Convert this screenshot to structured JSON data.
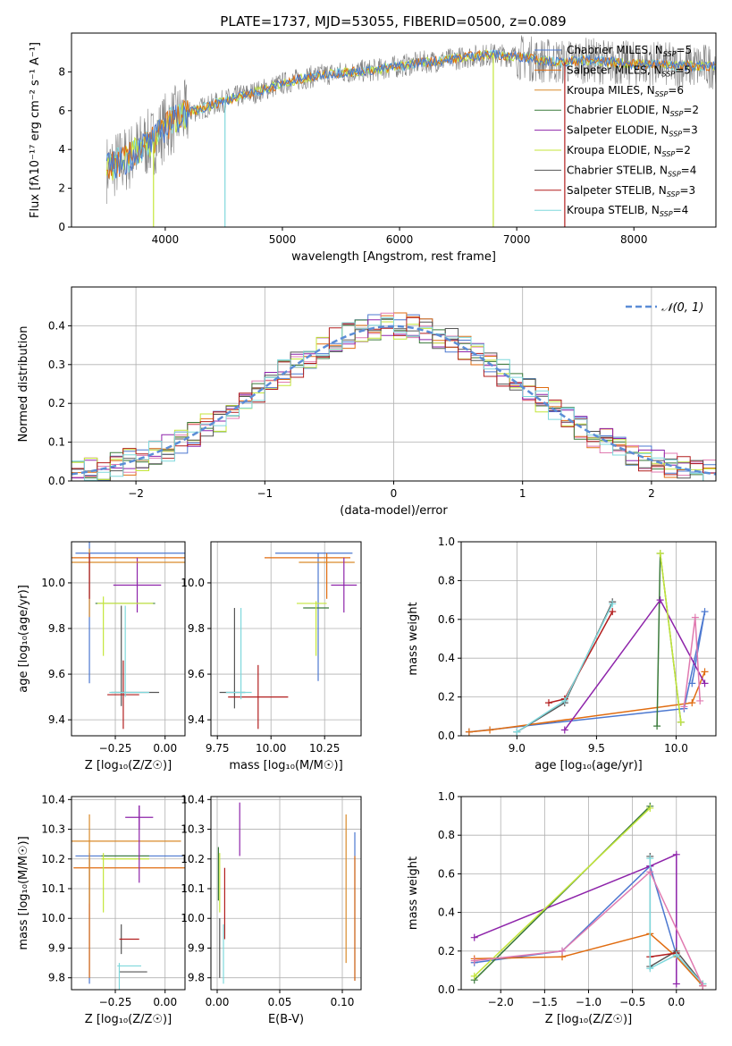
{
  "figure_title": "PLATE=1737, MJD=53055, FIBERID=0500, z=0.089",
  "model_colors": [
    "#4c78d0",
    "#e06c10",
    "#d98a2a",
    "#3a7a3a",
    "#8e24aa",
    "#c4e63a",
    "#555555",
    "#b21e1e",
    "#7fd8dc"
  ],
  "chart_data": [
    {
      "id": "spectrum",
      "type": "line",
      "xlabel": "wavelength [Angstrom, rest frame]",
      "ylabel": "Flux [f$_\\lambda$10$^{-17}$ erg cm$^{-2}$ s$^{-1}$ A$^{-1}$]",
      "ylabel_display": "Flux [fλ10⁻¹⁷ erg cm⁻² s⁻¹ A⁻¹]",
      "xlim": [
        3200,
        8700
      ],
      "ylim": [
        0,
        10
      ],
      "xticks": [
        4000,
        5000,
        6000,
        7000,
        8000
      ],
      "yticks": [
        0,
        2,
        4,
        6,
        8
      ],
      "legend_position": "top-right",
      "data_color": "#808080",
      "continuum": [
        [
          3500,
          3.0
        ],
        [
          3700,
          3.6
        ],
        [
          3800,
          4.2
        ],
        [
          3900,
          4.4
        ],
        [
          4000,
          5.2
        ],
        [
          4100,
          5.6
        ],
        [
          4200,
          5.9
        ],
        [
          4400,
          6.3
        ],
        [
          4600,
          6.7
        ],
        [
          4800,
          7.0
        ],
        [
          5000,
          7.4
        ],
        [
          5200,
          7.7
        ],
        [
          5400,
          7.9
        ],
        [
          5600,
          8.0
        ],
        [
          5800,
          8.1
        ],
        [
          6000,
          8.3
        ],
        [
          6200,
          8.5
        ],
        [
          6400,
          8.6
        ],
        [
          6600,
          8.8
        ],
        [
          6800,
          8.9
        ],
        [
          7000,
          8.8
        ],
        [
          7200,
          8.6
        ],
        [
          7400,
          8.5
        ],
        [
          7600,
          8.6
        ],
        [
          7800,
          8.5
        ],
        [
          8000,
          8.4
        ],
        [
          8200,
          8.4
        ],
        [
          8400,
          8.3
        ],
        [
          8700,
          8.3
        ]
      ],
      "model_dips": [
        {
          "model": "Kroupa STELIB",
          "x": 4510,
          "y": 0
        },
        {
          "model": "Kroupa ELODIE",
          "x": 6800,
          "y": 0
        },
        {
          "model": "Salpeter STELIB",
          "x": 7410,
          "y": 0
        },
        {
          "model": "Kroupa ELODIE",
          "x": 3900,
          "y": 0
        }
      ],
      "legend": [
        {
          "label": "Chabrier MILES, N",
          "sub": "SSP",
          "suffix": "=5"
        },
        {
          "label": "Salpeter MILES, N",
          "sub": "SSP",
          "suffix": "=5"
        },
        {
          "label": "Kroupa MILES, N",
          "sub": "SSP",
          "suffix": "=6"
        },
        {
          "label": "Chabrier ELODIE, N",
          "sub": "SSP",
          "suffix": "=2"
        },
        {
          "label": "Salpeter ELODIE, N",
          "sub": "SSP",
          "suffix": "=3"
        },
        {
          "label": "Kroupa ELODIE, N",
          "sub": "SSP",
          "suffix": "=2"
        },
        {
          "label": "Chabrier STELIB, N",
          "sub": "SSP",
          "suffix": "=4"
        },
        {
          "label": "Salpeter STELIB, N",
          "sub": "SSP",
          "suffix": "=3"
        },
        {
          "label": "Kroupa STELIB, N",
          "sub": "SSP",
          "suffix": "=4"
        }
      ]
    },
    {
      "id": "residuals",
      "type": "step",
      "xlabel": "(data-model)/error",
      "ylabel": "Normed distribution",
      "xlim": [
        -2.5,
        2.5
      ],
      "ylim": [
        0,
        0.5
      ],
      "xticks": [
        -2,
        -1,
        0,
        1,
        2
      ],
      "xtick_labels": [
        "−2",
        "−1",
        "0",
        "1",
        "2"
      ],
      "yticks": [
        0.0,
        0.1,
        0.2,
        0.3,
        0.4
      ],
      "ytick_labels": [
        "0.0",
        "0.1",
        "0.2",
        "0.3",
        "0.4"
      ],
      "grid": true,
      "legend_position": "top-right",
      "legend": [
        {
          "label": "𝒩(0, 1)",
          "style": "dashed",
          "color": "#5b8dd6"
        }
      ],
      "bin_width": 0.1,
      "reference_curve": "normal(0,1)"
    },
    {
      "id": "age_vs_Z",
      "type": "errorbar",
      "xlabel": "Z [log₁₀(Z/Z☉)]",
      "ylabel": "age  [log₁₀(age/yr)]",
      "xlim": [
        -0.47,
        0.1
      ],
      "ylim": [
        9.33,
        10.18
      ],
      "xticks": [
        -0.25,
        0.0
      ],
      "xtick_labels": [
        "−0.25",
        "0.00"
      ],
      "yticks": [
        9.4,
        9.6,
        9.8,
        10.0
      ],
      "ytick_labels": [
        "9.4",
        "9.6",
        "9.8",
        "10.0"
      ],
      "grid": true,
      "points": [
        {
          "x": -0.38,
          "y": 9.94,
          "xerr": 0.0,
          "yerr": 0.38,
          "model": 0
        },
        {
          "x": -0.38,
          "y": 10.13,
          "xerr": 0.0,
          "yerr": 0.0,
          "model": 0
        },
        {
          "x": -0.12,
          "y": 10.13,
          "xerr": 0.33,
          "yerr": 0.0,
          "model": 0
        },
        {
          "x": -0.16,
          "y": 10.11,
          "xerr": 0.35,
          "yerr": 0.0,
          "model": 1
        },
        {
          "x": -0.38,
          "y": 10.0,
          "xerr": 0.0,
          "yerr": 0.15,
          "model": 2
        },
        {
          "x": -0.2,
          "y": 9.91,
          "xerr": 0.15,
          "yerr": 0.0,
          "model": 3
        },
        {
          "x": -0.14,
          "y": 9.99,
          "xerr": 0.12,
          "yerr": 0.12,
          "model": 4
        },
        {
          "x": -0.31,
          "y": 9.81,
          "xerr": 0.0,
          "yerr": 0.13,
          "model": 5
        },
        {
          "x": -0.2,
          "y": 9.91,
          "xerr": 0.14,
          "yerr": 0.0,
          "model": 5
        },
        {
          "x": -0.15,
          "y": 9.52,
          "xerr": 0.12,
          "yerr": 0.0,
          "model": 6
        },
        {
          "x": -0.22,
          "y": 9.68,
          "xerr": 0.0,
          "yerr": 0.22,
          "model": 6
        },
        {
          "x": -0.21,
          "y": 9.51,
          "xerr": 0.08,
          "yerr": 0.15,
          "model": 7
        },
        {
          "x": -0.2,
          "y": 9.7,
          "xerr": 0.0,
          "yerr": 0.2,
          "model": 8
        },
        {
          "x": -0.18,
          "y": 9.52,
          "xerr": 0.1,
          "yerr": 0.0,
          "model": 8
        },
        {
          "x": -0.18,
          "y": 10.09,
          "xerr": 0.29,
          "yerr": 0.0,
          "model": 2
        },
        {
          "x": -0.38,
          "y": 10.03,
          "xerr": 0.0,
          "yerr": 0.1,
          "model": 7
        }
      ]
    },
    {
      "id": "age_vs_mass",
      "type": "errorbar",
      "xlabel": "mass [log₁₀(M/M☉)]",
      "ylabel": "",
      "xlim": [
        9.72,
        10.42
      ],
      "ylim": [
        9.33,
        10.18
      ],
      "xticks": [
        9.75,
        10.0,
        10.25
      ],
      "xtick_labels": [
        "9.75",
        "10.00",
        "10.25"
      ],
      "yticks": [
        9.4,
        9.6,
        9.8,
        10.0
      ],
      "ytick_labels": [
        "9.4",
        "9.6",
        "9.8",
        "10.0"
      ],
      "grid": true,
      "points": [
        {
          "x": 10.2,
          "y": 10.13,
          "xerr": 0.18,
          "yerr": 0.0,
          "model": 0
        },
        {
          "x": 10.22,
          "y": 9.85,
          "xerr": 0.0,
          "yerr": 0.28,
          "model": 0
        },
        {
          "x": 10.17,
          "y": 10.11,
          "xerr": 0.2,
          "yerr": 0.0,
          "model": 1
        },
        {
          "x": 10.26,
          "y": 10.03,
          "xerr": 0.0,
          "yerr": 0.1,
          "model": 1
        },
        {
          "x": 10.26,
          "y": 10.09,
          "xerr": 0.13,
          "yerr": 0.0,
          "model": 2
        },
        {
          "x": 10.21,
          "y": 9.89,
          "xerr": 0.06,
          "yerr": 0.0,
          "model": 3
        },
        {
          "x": 10.34,
          "y": 9.99,
          "xerr": 0.06,
          "yerr": 0.12,
          "model": 4
        },
        {
          "x": 10.21,
          "y": 9.8,
          "xerr": 0.0,
          "yerr": 0.12,
          "model": 5
        },
        {
          "x": 10.19,
          "y": 9.91,
          "xerr": 0.07,
          "yerr": 0.0,
          "model": 5
        },
        {
          "x": 9.82,
          "y": 9.52,
          "xerr": 0.06,
          "yerr": 0.0,
          "model": 6
        },
        {
          "x": 9.83,
          "y": 9.67,
          "xerr": 0.0,
          "yerr": 0.22,
          "model": 6
        },
        {
          "x": 9.94,
          "y": 9.5,
          "xerr": 0.14,
          "yerr": 0.14,
          "model": 7
        },
        {
          "x": 9.86,
          "y": 9.69,
          "xerr": 0.0,
          "yerr": 0.2,
          "model": 8
        },
        {
          "x": 9.85,
          "y": 9.52,
          "xerr": 0.06,
          "yerr": 0.0,
          "model": 8
        }
      ]
    },
    {
      "id": "mass_weight_vs_age",
      "type": "line",
      "xlabel": "age  [log₁₀(age/yr)]",
      "ylabel": "mass weight",
      "xlim": [
        8.65,
        10.25
      ],
      "ylim": [
        0,
        1
      ],
      "xticks": [
        9.0,
        9.5,
        10.0
      ],
      "xtick_labels": [
        "9.0",
        "9.5",
        "10.0"
      ],
      "yticks": [
        0.0,
        0.2,
        0.4,
        0.6,
        0.8,
        1.0
      ],
      "ytick_labels": [
        "0.0",
        "0.2",
        "0.4",
        "0.6",
        "0.8",
        "1.0"
      ],
      "grid": true,
      "series": [
        {
          "model": 0,
          "x": [
            8.7,
            10.05,
            10.18,
            10.1
          ],
          "y": [
            0.02,
            0.14,
            0.64,
            0.27
          ]
        },
        {
          "model": 1,
          "x": [
            8.7,
            8.83,
            10.1,
            10.18
          ],
          "y": [
            0.02,
            0.03,
            0.17,
            0.33
          ]
        },
        {
          "model": 3,
          "x": [
            9.88,
            9.9,
            10.03
          ],
          "y": [
            0.05,
            0.94,
            0.07
          ]
        },
        {
          "model": 4,
          "x": [
            9.3,
            9.9,
            10.18
          ],
          "y": [
            0.03,
            0.7,
            0.27
          ]
        },
        {
          "model": 5,
          "x": [
            9.9,
            10.03
          ],
          "y": [
            0.94,
            0.07
          ]
        },
        {
          "model": 6,
          "x": [
            9.0,
            9.3,
            9.6
          ],
          "y": [
            0.02,
            0.17,
            0.69
          ]
        },
        {
          "model": 7,
          "x": [
            9.2,
            9.3,
            9.6
          ],
          "y": [
            0.17,
            0.19,
            0.64
          ]
        },
        {
          "model": 8,
          "x": [
            9.0,
            9.3,
            9.6
          ],
          "y": [
            0.02,
            0.18,
            0.68
          ]
        },
        {
          "model": 2,
          "x": [
            10.05,
            10.12,
            10.15
          ],
          "y": [
            0.15,
            0.61,
            0.18
          ]
        }
      ]
    },
    {
      "id": "mass_vs_Z",
      "type": "errorbar",
      "xlabel": "Z [log₁₀(Z/Z☉)]",
      "ylabel": "mass [log₁₀(M/M☉)]",
      "xlim": [
        -0.47,
        0.1
      ],
      "ylim": [
        9.76,
        10.41
      ],
      "xticks": [
        -0.25,
        0.0
      ],
      "xtick_labels": [
        "−0.25",
        "0.00"
      ],
      "yticks": [
        9.8,
        9.9,
        10.0,
        10.1,
        10.2,
        10.3,
        10.4
      ],
      "ytick_labels": [
        "9.8",
        "9.9",
        "10.0",
        "10.1",
        "10.2",
        "10.3",
        "10.4"
      ],
      "grid": true,
      "points": [
        {
          "x": -0.38,
          "y": 10.0,
          "xerr": 0.0,
          "yerr": 0.22,
          "model": 0
        },
        {
          "x": -0.18,
          "y": 10.21,
          "xerr": 0.27,
          "yerr": 0.0,
          "model": 0
        },
        {
          "x": -0.17,
          "y": 10.17,
          "xerr": 0.29,
          "yerr": 0.0,
          "model": 1
        },
        {
          "x": -0.38,
          "y": 10.0,
          "xerr": 0.0,
          "yerr": 0.2,
          "model": 1
        },
        {
          "x": -0.2,
          "y": 10.26,
          "xerr": 0.28,
          "yerr": 0.0,
          "model": 2
        },
        {
          "x": -0.38,
          "y": 10.2,
          "xerr": 0.0,
          "yerr": 0.15,
          "model": 2
        },
        {
          "x": -0.2,
          "y": 10.21,
          "xerr": 0.12,
          "yerr": 0.0,
          "model": 3
        },
        {
          "x": -0.31,
          "y": 10.12,
          "xerr": 0.0,
          "yerr": 0.1,
          "model": 5
        },
        {
          "x": -0.2,
          "y": 10.2,
          "xerr": 0.12,
          "yerr": 0.0,
          "model": 5
        },
        {
          "x": -0.13,
          "y": 10.34,
          "xerr": 0.07,
          "yerr": 0.04,
          "model": 4
        },
        {
          "x": -0.13,
          "y": 10.25,
          "xerr": 0.0,
          "yerr": 0.13,
          "model": 4
        },
        {
          "x": -0.22,
          "y": 9.93,
          "xerr": 0.0,
          "yerr": 0.05,
          "model": 6
        },
        {
          "x": -0.16,
          "y": 9.82,
          "xerr": 0.07,
          "yerr": 0.0,
          "model": 6
        },
        {
          "x": -0.18,
          "y": 9.93,
          "xerr": 0.05,
          "yerr": 0.0,
          "model": 7
        },
        {
          "x": -0.18,
          "y": 9.84,
          "xerr": 0.06,
          "yerr": 0.0,
          "model": 8
        },
        {
          "x": -0.23,
          "y": 9.8,
          "xerr": 0.0,
          "yerr": 0.05,
          "model": 8
        }
      ]
    },
    {
      "id": "mass_vs_EBV",
      "type": "errorbar",
      "xlabel": "E(B-V)",
      "ylabel": "",
      "xlim": [
        -0.005,
        0.115
      ],
      "ylim": [
        9.76,
        10.41
      ],
      "xticks": [
        0.0,
        0.05,
        0.1
      ],
      "xtick_labels": [
        "0.00",
        "0.05",
        "0.10"
      ],
      "yticks": [
        9.8,
        9.9,
        10.0,
        10.1,
        10.2,
        10.3,
        10.4
      ],
      "ytick_labels": [
        "9.8",
        "9.9",
        "10.0",
        "10.1",
        "10.2",
        "10.3",
        "10.4"
      ],
      "grid": true,
      "points": [
        {
          "x": 0.11,
          "y": 10.04,
          "xerr": 0.0,
          "yerr": 0.25,
          "model": 0
        },
        {
          "x": 0.11,
          "y": 10.0,
          "xerr": 0.0,
          "yerr": 0.21,
          "model": 1
        },
        {
          "x": 0.103,
          "y": 10.1,
          "xerr": 0.0,
          "yerr": 0.25,
          "model": 2
        },
        {
          "x": 0.002,
          "y": 10.12,
          "xerr": 0.0,
          "yerr": 0.1,
          "model": 5
        },
        {
          "x": 0.001,
          "y": 10.15,
          "xerr": 0.0,
          "yerr": 0.09,
          "model": 3
        },
        {
          "x": 0.018,
          "y": 10.3,
          "xerr": 0.0,
          "yerr": 0.09,
          "model": 4
        },
        {
          "x": 0.002,
          "y": 9.9,
          "xerr": 0.0,
          "yerr": 0.1,
          "model": 6
        },
        {
          "x": 0.006,
          "y": 10.05,
          "xerr": 0.0,
          "yerr": 0.12,
          "model": 7
        },
        {
          "x": 0.005,
          "y": 9.88,
          "xerr": 0.0,
          "yerr": 0.1,
          "model": 8
        }
      ]
    },
    {
      "id": "mass_weight_vs_Z",
      "type": "line",
      "xlabel": "Z [log₁₀(Z/Z☉)]",
      "ylabel": "mass weight",
      "xlim": [
        -2.45,
        0.45
      ],
      "ylim": [
        0,
        1
      ],
      "xticks": [
        -2.0,
        -1.5,
        -1.0,
        -0.5,
        0.0
      ],
      "xtick_labels": [
        "−2.0",
        "−1.5",
        "−1.0",
        "−0.5",
        "0.0"
      ],
      "yticks": [
        0.0,
        0.2,
        0.4,
        0.6,
        0.8,
        1.0
      ],
      "ytick_labels": [
        "0.0",
        "0.2",
        "0.4",
        "0.6",
        "0.8",
        "1.0"
      ],
      "grid": true,
      "series": [
        {
          "model": 0,
          "x": [
            -2.3,
            -1.3,
            -0.3,
            0.0,
            0.3
          ],
          "y": [
            0.14,
            0.2,
            0.64,
            0.18,
            0.02
          ]
        },
        {
          "model": 1,
          "x": [
            -2.3,
            -1.3,
            -0.3,
            0.0,
            0.3
          ],
          "y": [
            0.16,
            0.17,
            0.29,
            0.17,
            0.02
          ]
        },
        {
          "model": 3,
          "x": [
            -2.3,
            -0.3
          ],
          "y": [
            0.05,
            0.95
          ]
        },
        {
          "model": 4,
          "x": [
            -2.3,
            -0.3,
            0.0,
            0.0
          ],
          "y": [
            0.27,
            0.64,
            0.7,
            0.03
          ]
        },
        {
          "model": 5,
          "x": [
            -2.3,
            -0.3
          ],
          "y": [
            0.07,
            0.94
          ]
        },
        {
          "model": 6,
          "x": [
            -0.3,
            -0.3,
            0.0,
            0.3
          ],
          "y": [
            0.69,
            0.12,
            0.2,
            0.03
          ]
        },
        {
          "model": 7,
          "x": [
            -0.3,
            0.0
          ],
          "y": [
            0.17,
            0.19
          ]
        },
        {
          "model": 8,
          "x": [
            -0.3,
            -0.3,
            0.0,
            0.3
          ],
          "y": [
            0.68,
            0.11,
            0.18,
            0.03
          ]
        },
        {
          "model": 2,
          "x": [
            -2.3,
            -1.3,
            -0.3,
            0.3
          ],
          "y": [
            0.15,
            0.2,
            0.61,
            0.02
          ]
        }
      ]
    }
  ]
}
